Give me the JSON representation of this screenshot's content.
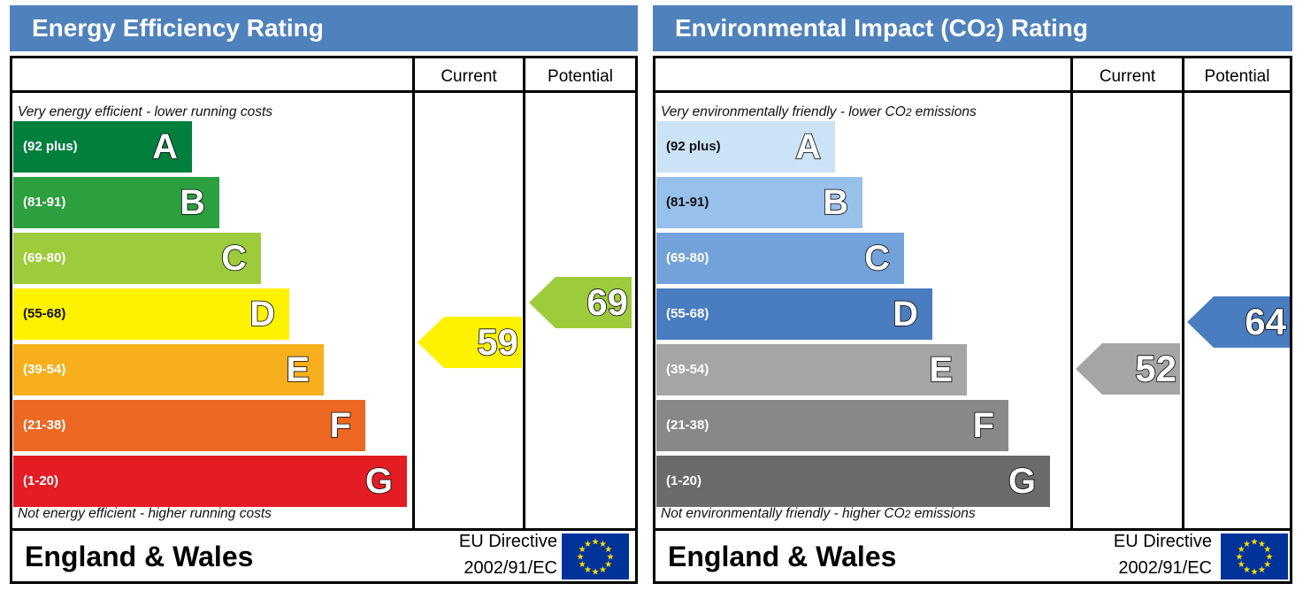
{
  "chart_data": [
    {
      "type": "bar",
      "title": "Energy Efficiency Rating",
      "columns": [
        "Current",
        "Potential"
      ],
      "top_note": "Very energy efficient - lower running costs",
      "bottom_note": "Not energy efficient - higher running costs",
      "bands": [
        {
          "letter": "A",
          "range": "(92 plus)",
          "color": "#007f3d"
        },
        {
          "letter": "B",
          "range": "(81-91)",
          "color": "#2c9f3e"
        },
        {
          "letter": "C",
          "range": "(69-80)",
          "color": "#9dcb3c"
        },
        {
          "letter": "D",
          "range": "(55-68)",
          "color": "#fff200"
        },
        {
          "letter": "E",
          "range": "(39-54)",
          "color": "#f7af1d"
        },
        {
          "letter": "F",
          "range": "(21-38)",
          "color": "#ed6823"
        },
        {
          "letter": "G",
          "range": "(1-20)",
          "color": "#e31d23"
        }
      ],
      "current": {
        "value": 59,
        "band": "D",
        "color": "#fff200"
      },
      "potential": {
        "value": 69,
        "band": "C",
        "color": "#9dcb3c"
      },
      "footer": {
        "region": "England & Wales",
        "directive_line1": "EU Directive",
        "directive_line2": "2002/91/EC"
      }
    },
    {
      "type": "bar",
      "title": "Environmental Impact (CO2) Rating",
      "columns": [
        "Current",
        "Potential"
      ],
      "top_note": "Very environmentally friendly - lower CO2 emissions",
      "bottom_note": "Not environmentally friendly - higher CO2 emissions",
      "bands": [
        {
          "letter": "A",
          "range": "(92 plus)",
          "color": "#cce2f5"
        },
        {
          "letter": "B",
          "range": "(81-91)",
          "color": "#97c0ea"
        },
        {
          "letter": "C",
          "range": "(69-80)",
          "color": "#72a2d9"
        },
        {
          "letter": "D",
          "range": "(55-68)",
          "color": "#4a7cc0"
        },
        {
          "letter": "E",
          "range": "(39-54)",
          "color": "#a5a5a5"
        },
        {
          "letter": "F",
          "range": "(21-38)",
          "color": "#888888"
        },
        {
          "letter": "G",
          "range": "(1-20)",
          "color": "#6b6b6b"
        }
      ],
      "current": {
        "value": 52,
        "band": "E",
        "color": "#a5a5a5"
      },
      "potential": {
        "value": 64,
        "band": "D",
        "color": "#4a7cc0"
      },
      "footer": {
        "region": "England & Wales",
        "directive_line1": "EU Directive",
        "directive_line2": "2002/91/EC"
      }
    }
  ]
}
